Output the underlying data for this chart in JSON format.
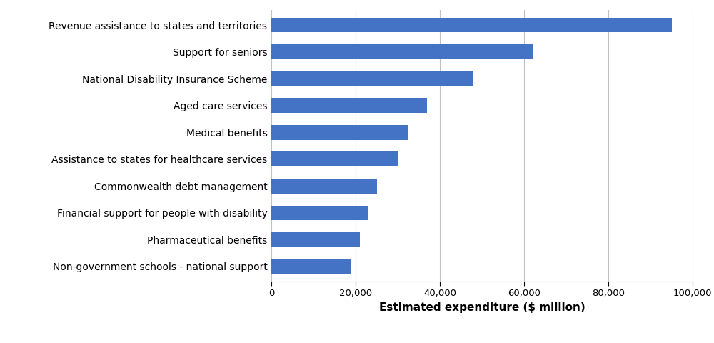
{
  "categories": [
    "Non-government schools - national support",
    "Pharmaceutical benefits",
    "Financial support for people with disability",
    "Commonwealth debt management",
    "Assistance to states for healthcare services",
    "Medical benefits",
    "Aged care services",
    "National Disability Insurance Scheme",
    "Support for seniors",
    "Revenue assistance to states and territories"
  ],
  "values": [
    19000,
    21000,
    23000,
    25000,
    30000,
    32500,
    37000,
    48000,
    62000,
    95000
  ],
  "bar_color": "#4472C4",
  "xlabel": "Estimated expenditure ($ million)",
  "xlim": [
    0,
    100000
  ],
  "xticks": [
    0,
    20000,
    40000,
    60000,
    80000,
    100000
  ],
  "xtick_labels": [
    "0",
    "20,000",
    "40,000",
    "60,000",
    "80,000",
    "100,000"
  ],
  "grid_color": "#c0c0c0",
  "background_color": "#ffffff",
  "bar_height": 0.55,
  "xlabel_fontsize": 11,
  "tick_fontsize": 9.5,
  "label_fontsize": 10
}
